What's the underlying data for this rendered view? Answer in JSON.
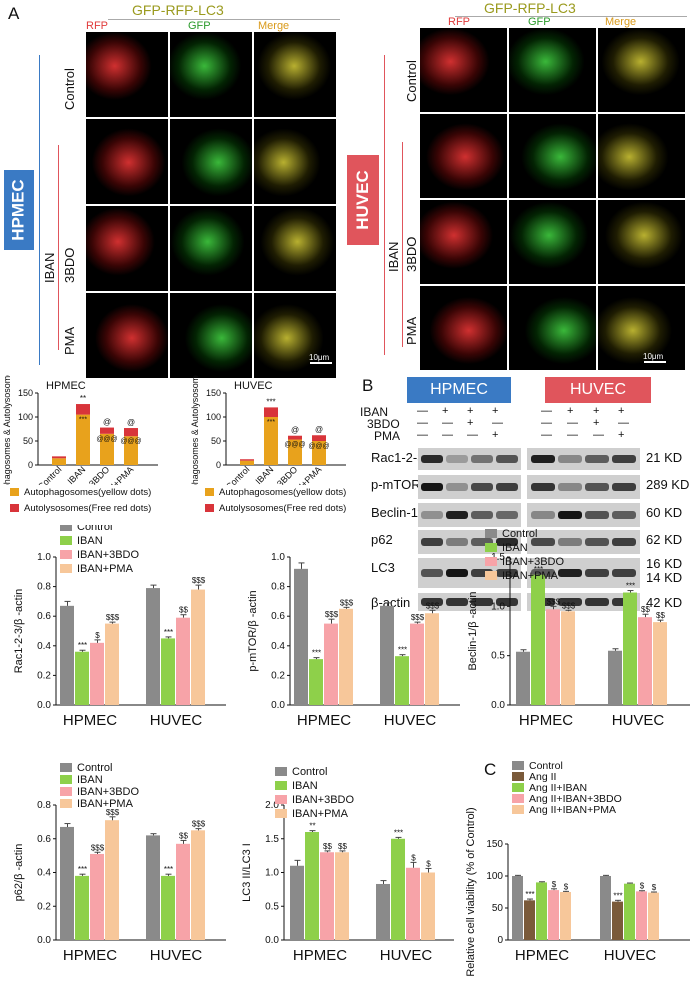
{
  "panelA": {
    "letter": "A",
    "title": "GFP-RFP-LC3",
    "channels": [
      "RFP",
      "GFP",
      "Merge"
    ],
    "left_cell": "HPMEC",
    "right_cell": "HUVEC",
    "row_labels": {
      "control": "Control",
      "iban": "IBAN",
      "bdo": "3BDO",
      "pma": "PMA"
    },
    "scale_bar": "10μm",
    "colors": {
      "hpmec": "#3a7ac4",
      "huvec": "#e0555c",
      "rfp": "#e03a3a",
      "gfp": "#2a9a2a",
      "merge": "#d99a1a"
    }
  },
  "autophagy_charts": [
    {
      "title": "HPMEC",
      "ylabel": "Autophagosomes & Autolysosomes/cell",
      "categories": [
        "Control",
        "IBAN",
        "IBAN+3BDO",
        "IBAN+PMA"
      ],
      "yticks": [
        "0",
        "50",
        "100",
        "150"
      ],
      "ylim": [
        0,
        150
      ],
      "autophagosomes": [
        14,
        105,
        65,
        60
      ],
      "autolysosomes": [
        4,
        22,
        13,
        17
      ],
      "sig_top": [
        "",
        "**",
        "@",
        "@"
      ],
      "sig_mid": [
        "",
        "***",
        "@@@",
        "@@@"
      ]
    },
    {
      "title": "HUVEC",
      "ylabel": "Autophagosomes & Autolysosomes/cell",
      "categories": [
        "Control",
        "IBAN",
        "IBAN+3BDO",
        "IBAN+PMA"
      ],
      "yticks": [
        "0",
        "50",
        "100",
        "150"
      ],
      "ylim": [
        0,
        150
      ],
      "autophagosomes": [
        9,
        100,
        53,
        50
      ],
      "autolysosomes": [
        3,
        20,
        8,
        12
      ],
      "sig_top": [
        "",
        "***",
        "@",
        "@"
      ],
      "sig_mid": [
        "",
        "***",
        "@@@",
        "@@@"
      ]
    }
  ],
  "autophagy_legend": [
    {
      "label": "Autophagosomes(yellow dots)",
      "color": "#e8a21c"
    },
    {
      "label": "Autolysosomes(Free red dots)",
      "color": "#d8343a"
    },
    {
      "label": "Autophagosomes(yellow dots)",
      "color": "#e8a21c"
    },
    {
      "label": "Autolysosomes(Free red dots)",
      "color": "#d8343a"
    }
  ],
  "panelB": {
    "letter": "B",
    "groups": [
      "HPMEC",
      "HUVEC"
    ],
    "treatments": [
      {
        "label": "IBAN",
        "signs": [
          "—",
          "+",
          "+",
          "+",
          "—",
          "+",
          "+",
          "+"
        ]
      },
      {
        "label": "3BDO",
        "signs": [
          "—",
          "—",
          "+",
          "—",
          "—",
          "—",
          "+",
          "—"
        ]
      },
      {
        "label": "PMA",
        "signs": [
          "—",
          "—",
          "—",
          "+",
          "—",
          "—",
          "—",
          "+"
        ]
      }
    ],
    "blots": [
      {
        "name": "Rac1-2-3",
        "kd": "21 KD",
        "hp": [
          0.8,
          0.25,
          0.45,
          0.6
        ],
        "hu": [
          0.85,
          0.35,
          0.55,
          0.7
        ]
      },
      {
        "name": "p-mTOR",
        "kd": "289 KD",
        "hp": [
          0.9,
          0.3,
          0.65,
          0.7
        ],
        "hu": [
          0.75,
          0.35,
          0.6,
          0.7
        ]
      },
      {
        "name": "Beclin-1",
        "kd": "60 KD",
        "hp": [
          0.3,
          0.85,
          0.55,
          0.5
        ],
        "hu": [
          0.35,
          0.9,
          0.6,
          0.55
        ]
      },
      {
        "name": "p62",
        "kd": "62 KD",
        "hp": [
          0.7,
          0.4,
          0.55,
          0.8
        ],
        "hu": [
          0.65,
          0.4,
          0.6,
          0.7
        ]
      },
      {
        "name": "LC3",
        "kd": "16 KD",
        "kd2": "14 KD",
        "hp": [
          0.6,
          0.9,
          0.7,
          0.7
        ],
        "hu": [
          0.55,
          0.85,
          0.7,
          0.7
        ]
      },
      {
        "name": "β-actin",
        "kd": "42 KD",
        "hp": [
          0.75,
          0.75,
          0.75,
          0.75
        ],
        "hu": [
          0.75,
          0.75,
          0.75,
          0.75
        ]
      }
    ]
  },
  "legend4": [
    "Control",
    "IBAN",
    "IBAN+3BDO",
    "IBAN+PMA"
  ],
  "bar_colors": [
    "#8a8a8a",
    "#8ed04a",
    "#f7a3a8",
    "#f7c79a"
  ],
  "quant_charts": [
    {
      "ylabel": "Rac1-2-3/β -actin",
      "groups": [
        "HPMEC",
        "HUVEC"
      ],
      "yticks": [
        "0.0",
        "0.2",
        "0.4",
        "0.6",
        "0.8",
        "1.0"
      ],
      "ylim": [
        0,
        1.0
      ],
      "values": [
        [
          0.67,
          0.36,
          0.42,
          0.55
        ],
        [
          0.79,
          0.45,
          0.59,
          0.78
        ]
      ],
      "errors": [
        [
          0.03,
          0.01,
          0.02,
          0.01
        ],
        [
          0.02,
          0.01,
          0.02,
          0.03
        ]
      ],
      "sig": [
        [
          "",
          "***",
          "$",
          "$$$"
        ],
        [
          "",
          "***",
          "$$",
          "$$$"
        ]
      ]
    },
    {
      "ylabel": "p-mTOR/β -actin",
      "groups": [
        "HPMEC",
        "HUVEC"
      ],
      "yticks": [
        "0.0",
        "0.2",
        "0.4",
        "0.6",
        "0.8",
        "1.0"
      ],
      "ylim": [
        0,
        1.0
      ],
      "values": [
        [
          0.92,
          0.31,
          0.55,
          0.65
        ],
        [
          0.67,
          0.33,
          0.55,
          0.62
        ]
      ],
      "errors": [
        [
          0.04,
          0.01,
          0.03,
          0.01
        ],
        [
          0.02,
          0.01,
          0.01,
          0.02
        ]
      ],
      "sig": [
        [
          "",
          "***",
          "$$$",
          "$$$"
        ],
        [
          "",
          "***",
          "$$$",
          "$$$"
        ]
      ]
    },
    {
      "ylabel": "Beclin-1/β -actin",
      "groups": [
        "HPMEC",
        "HUVEC"
      ],
      "yticks": [
        "0.0",
        "0.5",
        "1.0",
        "1.5"
      ],
      "ylim": [
        0,
        1.5
      ],
      "values": [
        [
          0.54,
          1.32,
          0.97,
          0.95
        ],
        [
          0.55,
          1.14,
          0.89,
          0.84
        ]
      ],
      "errors": [
        [
          0.02,
          0.01,
          0.03,
          0.01
        ],
        [
          0.02,
          0.02,
          0.03,
          0.02
        ]
      ],
      "sig": [
        [
          "",
          "***",
          "$$$",
          "$$$"
        ],
        [
          "",
          "***",
          "$$",
          "$$"
        ]
      ]
    },
    {
      "ylabel": "p62/β -actin",
      "groups": [
        "HPMEC",
        "HUVEC"
      ],
      "yticks": [
        "0.0",
        "0.2",
        "0.4",
        "0.6",
        "0.8"
      ],
      "ylim": [
        0,
        0.8
      ],
      "values": [
        [
          0.67,
          0.38,
          0.51,
          0.71
        ],
        [
          0.62,
          0.38,
          0.57,
          0.65
        ]
      ],
      "errors": [
        [
          0.02,
          0.01,
          0.01,
          0.02
        ],
        [
          0.01,
          0.01,
          0.02,
          0.01
        ]
      ],
      "sig": [
        [
          "",
          "***",
          "$$$",
          "$$$"
        ],
        [
          "",
          "***",
          "$$",
          "$$$"
        ]
      ]
    },
    {
      "ylabel": "LC3 II/LC3 I",
      "groups": [
        "HPMEC",
        "HUVEC"
      ],
      "yticks": [
        "0.0",
        "0.5",
        "1.0",
        "1.5",
        "2.0"
      ],
      "ylim": [
        0,
        2.0
      ],
      "values": [
        [
          1.1,
          1.6,
          1.3,
          1.3
        ],
        [
          0.83,
          1.5,
          1.07,
          1.0
        ]
      ],
      "errors": [
        [
          0.08,
          0.02,
          0.02,
          0.02
        ],
        [
          0.05,
          0.02,
          0.08,
          0.06
        ]
      ],
      "sig": [
        [
          "",
          "**",
          "$$",
          "$$"
        ],
        [
          "",
          "***",
          "$",
          "$"
        ]
      ]
    }
  ],
  "panelC": {
    "letter": "C",
    "legend": [
      "Control",
      "Ang II",
      "Ang II+IBAN",
      "Ang II+IBAN+3BDO",
      "Ang II+IBAN+PMA"
    ],
    "colors": [
      "#8a8a8a",
      "#7a5a3a",
      "#8ed04a",
      "#f7a3a8",
      "#f7c79a"
    ],
    "ylabel": "Relative cell viability (% of Control)",
    "groups": [
      "HPMEC",
      "HUVEC"
    ],
    "yticks": [
      "0",
      "50",
      "100",
      "150"
    ],
    "ylim": [
      0,
      150
    ],
    "values": [
      [
        100,
        62,
        90,
        78,
        75
      ],
      [
        100,
        60,
        88,
        76,
        74
      ]
    ],
    "errors": [
      [
        1,
        2,
        1,
        2,
        1
      ],
      [
        1,
        2,
        1,
        1,
        1
      ]
    ],
    "sig": [
      [
        "",
        "***",
        "",
        "$",
        "$"
      ],
      [
        "",
        "***",
        "",
        "$",
        "$"
      ]
    ]
  }
}
